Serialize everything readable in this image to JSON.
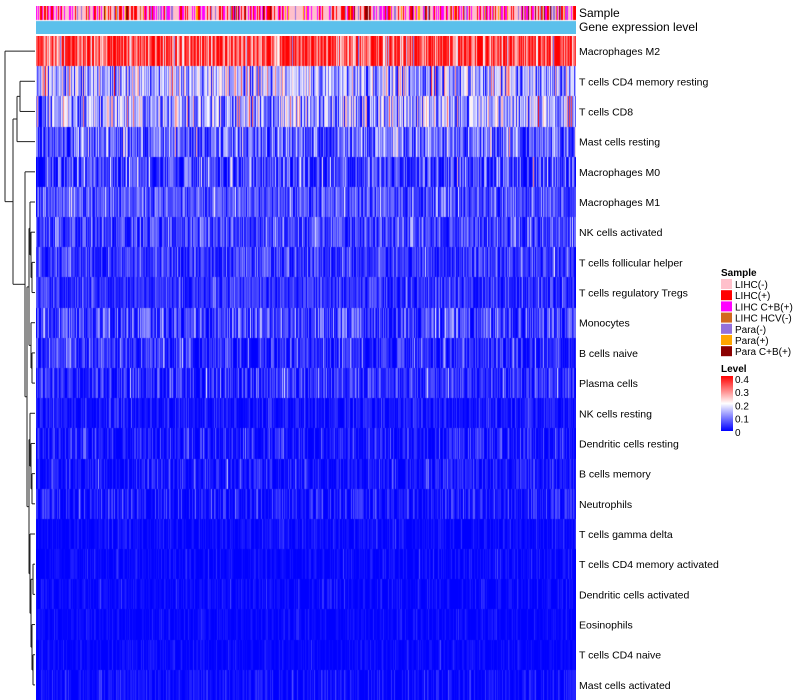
{
  "chart_data": {
    "type": "heatmap",
    "title": "",
    "annotation_tracks": [
      "Sample",
      "Gene expression level"
    ],
    "rows": [
      {
        "label": "Macrophages M2",
        "mean": 0.34,
        "spread": 0.09
      },
      {
        "label": "T cells CD4 memory resting",
        "mean": 0.14,
        "spread": 0.08
      },
      {
        "label": "T cells CD8",
        "mean": 0.13,
        "spread": 0.08
      },
      {
        "label": "Mast cells resting",
        "mean": 0.07,
        "spread": 0.06
      },
      {
        "label": "Macrophages M0",
        "mean": 0.05,
        "spread": 0.06
      },
      {
        "label": "Macrophages M1",
        "mean": 0.06,
        "spread": 0.04
      },
      {
        "label": "NK cells activated",
        "mean": 0.05,
        "spread": 0.04
      },
      {
        "label": "T cells follicular helper",
        "mean": 0.04,
        "spread": 0.035
      },
      {
        "label": "T cells regulatory  Tregs",
        "mean": 0.035,
        "spread": 0.03
      },
      {
        "label": "Monocytes",
        "mean": 0.05,
        "spread": 0.05
      },
      {
        "label": "B cells naive",
        "mean": 0.03,
        "spread": 0.04
      },
      {
        "label": "Plasma cells",
        "mean": 0.03,
        "spread": 0.04
      },
      {
        "label": "NK cells resting",
        "mean": 0.015,
        "spread": 0.02
      },
      {
        "label": "Dendritic cells resting",
        "mean": 0.015,
        "spread": 0.03
      },
      {
        "label": "B cells memory",
        "mean": 0.012,
        "spread": 0.03
      },
      {
        "label": "Neutrophils",
        "mean": 0.015,
        "spread": 0.03
      },
      {
        "label": "T cells gamma delta",
        "mean": 0.005,
        "spread": 0.015
      },
      {
        "label": "T cells CD4 memory activated",
        "mean": 0.004,
        "spread": 0.015
      },
      {
        "label": "Dendritic cells activated",
        "mean": 0.004,
        "spread": 0.015
      },
      {
        "label": "Eosinophils",
        "mean": 0.003,
        "spread": 0.012
      },
      {
        "label": "T cells CD4 naive",
        "mean": 0.003,
        "spread": 0.012
      },
      {
        "label": "Mast cells activated",
        "mean": 0.006,
        "spread": 0.02
      }
    ],
    "n_samples": 540,
    "legend_sample": {
      "title": "Sample",
      "entries": [
        {
          "label": "LIHC(-)",
          "color": "#FFC0CB"
        },
        {
          "label": "LIHC(+)",
          "color": "#FF0000"
        },
        {
          "label": "LIHC C+B(+)",
          "color": "#FF00FF"
        },
        {
          "label": "LIHC HCV(-)",
          "color": "#D2691E"
        },
        {
          "label": "Para(-)",
          "color": "#9370DB"
        },
        {
          "label": "Para(+)",
          "color": "#FFA500"
        },
        {
          "label": "Para C+B(+)",
          "color": "#8B0000"
        }
      ]
    },
    "legend_level": {
      "title": "Level",
      "ticks": [
        "0.4",
        "0.3",
        "0.2",
        "0.1",
        "0"
      ],
      "range": [
        0,
        0.4
      ],
      "color_low": "#0000FF",
      "color_mid": "#FFFFFF",
      "color_high": "#FF0000"
    },
    "expression_track_color": "#5BC0EB"
  }
}
